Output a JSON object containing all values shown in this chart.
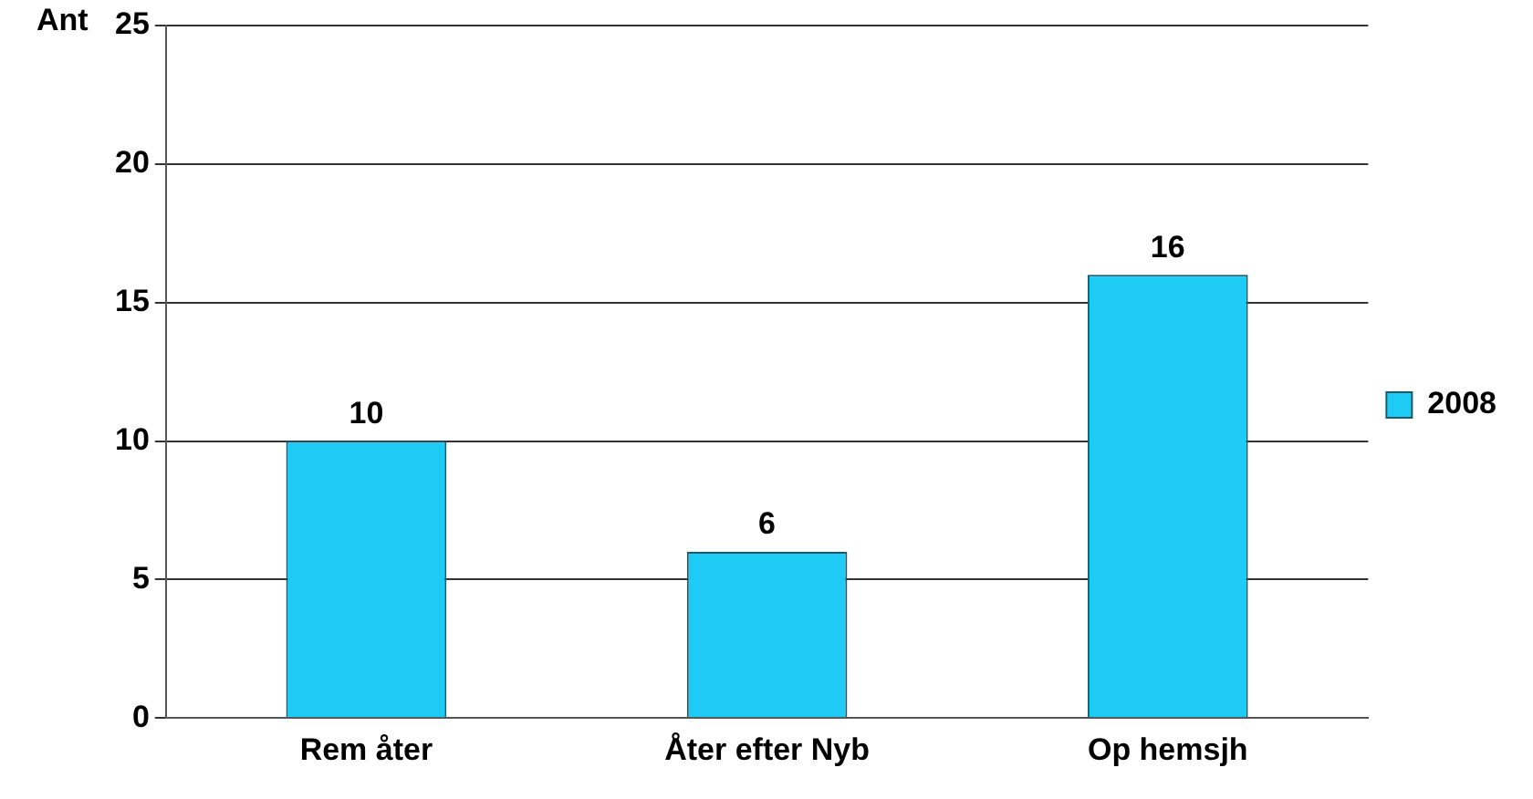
{
  "chart_data": {
    "type": "bar",
    "ylabel": "Ant",
    "categories": [
      "Rem åter",
      "Åter efter Nyb",
      "Op hemsjh"
    ],
    "series": [
      {
        "name": "2008",
        "color": "#1ecbf5",
        "values": [
          10,
          6,
          16
        ]
      }
    ],
    "ylim": [
      0,
      25
    ],
    "yticks": [
      0,
      5,
      10,
      15,
      20,
      25
    ],
    "grid": "y",
    "legend": "right",
    "data_labels": true
  }
}
